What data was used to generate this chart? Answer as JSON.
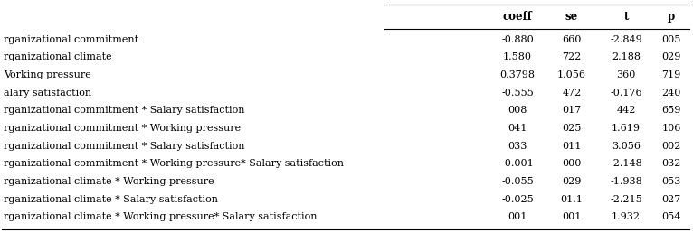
{
  "rows": [
    [
      "rganizational commitment",
      "-0.880",
      "660",
      "-2.849",
      "005"
    ],
    [
      "rganizational climate",
      "1.580",
      "722",
      "2.188",
      "029"
    ],
    [
      "Vorking pressure",
      "0.3798",
      "1.056",
      "360",
      "719"
    ],
    [
      "alary satisfaction",
      "-0.555",
      "472",
      "-0.176",
      "240"
    ],
    [
      "rganizational commitment * Salary satisfaction",
      "008",
      "017",
      "442",
      "659"
    ],
    [
      "rganizational commitment * Working pressure",
      "041",
      "025",
      "1.619",
      "106"
    ],
    [
      "rganizational commitment * Salary satisfaction",
      "033",
      "011",
      "3.056",
      "002"
    ],
    [
      "rganizational commitment * Working pressure* Salary satisfaction",
      "-0.001",
      "000",
      "-2.148",
      "032"
    ],
    [
      "rganizational climate * Working pressure",
      "-0.055",
      "029",
      "-1.938",
      "053"
    ],
    [
      "rganizational climate * Salary satisfaction",
      "-0.025",
      "01.1",
      "-2.215",
      "027"
    ],
    [
      "rganizational climate * Working pressure* Salary satisfaction",
      "001",
      "001",
      "1.932",
      "054"
    ]
  ],
  "col_headers": [
    "coeff",
    "se",
    "t",
    "p"
  ],
  "bg_color": "#ffffff",
  "line_color": "#000000",
  "font_size": 8.0,
  "header_font_size": 8.5
}
